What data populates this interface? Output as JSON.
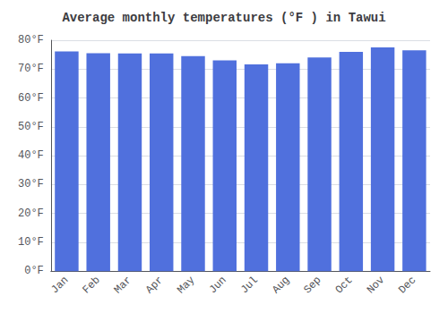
{
  "chart_data": {
    "type": "bar",
    "title": "Average monthly temperatures (°F ) in Tawui",
    "categories": [
      "Jan",
      "Feb",
      "Mar",
      "Apr",
      "May",
      "Jun",
      "Jul",
      "Aug",
      "Sep",
      "Oct",
      "Nov",
      "Dec"
    ],
    "values": [
      76.1,
      75.5,
      75.4,
      75.4,
      74.5,
      73.0,
      71.6,
      72.0,
      74.0,
      76.0,
      77.5,
      76.5
    ],
    "ylim": [
      0,
      80
    ],
    "yticks": [
      {
        "value": 0,
        "label": "0°F"
      },
      {
        "value": 10,
        "label": "10°F"
      },
      {
        "value": 20,
        "label": "20°F"
      },
      {
        "value": 30,
        "label": "30°F"
      },
      {
        "value": 40,
        "label": "40°F"
      },
      {
        "value": 50,
        "label": "50°F"
      },
      {
        "value": 60,
        "label": "60°F"
      },
      {
        "value": 70,
        "label": "70°F"
      },
      {
        "value": 80,
        "label": "80°F"
      }
    ],
    "grid": true
  }
}
